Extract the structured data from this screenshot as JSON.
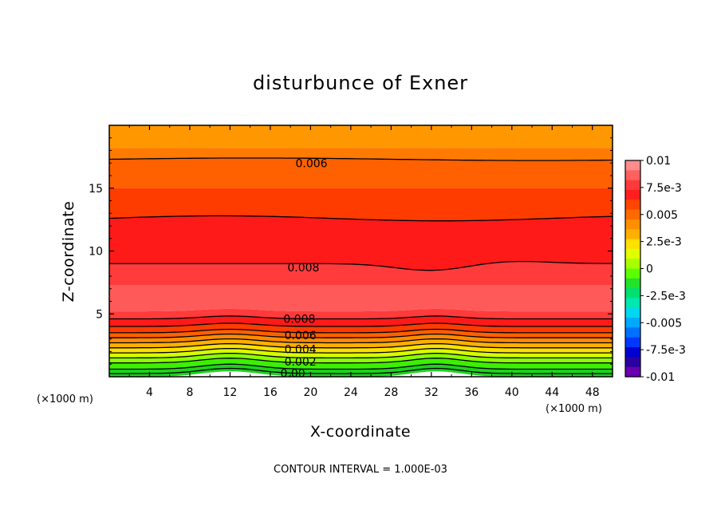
{
  "chart_data": {
    "type": "heatmap",
    "title": "disturbunce of Exner",
    "xlabel": "X-coordinate",
    "ylabel": "Z-coordinate",
    "x_unit": "(×1000 m)",
    "y_unit": "(×1000 m)",
    "xlim": [
      0,
      50
    ],
    "ylim": [
      0,
      20
    ],
    "x_ticks": [
      4,
      8,
      12,
      16,
      20,
      24,
      28,
      32,
      36,
      40,
      44,
      48
    ],
    "y_ticks": [
      5,
      10,
      15
    ],
    "footer": "CONTOUR INTERVAL = 1.000E-03",
    "contour_interval": 0.001,
    "colorbar": {
      "labels": [
        "0.01",
        "7.5e-3",
        "0.005",
        "2.5e-3",
        "0",
        "-2.5e-3",
        "-0.005",
        "-7.5e-3",
        "-0.01"
      ],
      "values": [
        0.01,
        0.0075,
        0.005,
        0.0025,
        0,
        -0.0025,
        -0.005,
        -0.0075,
        -0.01
      ],
      "colors": [
        "#ff8c8c",
        "#ff6060",
        "#ff3a3a",
        "#ff1e1e",
        "#ff4600",
        "#ff6a00",
        "#ff8f00",
        "#ffb000",
        "#ffe000",
        "#e0ff00",
        "#a8ff00",
        "#5cff00",
        "#22e22a",
        "#00e070",
        "#00e8b0",
        "#00d8f0",
        "#00a8ff",
        "#0070ff",
        "#0038ff",
        "#0000d0",
        "#2a00a0",
        "#6a00b0"
      ]
    },
    "contour_labels": [
      {
        "text": "0.006",
        "x": 18.5,
        "z": 17.0
      },
      {
        "text": "0.008",
        "x": 17.7,
        "z": 8.7
      },
      {
        "text": "0.008",
        "x": 17.3,
        "z": 4.6
      },
      {
        "text": "0.006",
        "x": 17.4,
        "z": 3.3
      },
      {
        "text": "0.004",
        "x": 17.4,
        "z": 2.2
      },
      {
        "text": "0.002",
        "x": 17.4,
        "z": 1.2
      },
      {
        "text": "0.00",
        "x": 17.0,
        "z": 0.3
      }
    ],
    "bands": [
      {
        "top": 20.0,
        "bottom": 18.2,
        "color": "#ff9800",
        "level": "0.005"
      },
      {
        "top": 18.2,
        "bottom": 17.3,
        "color": "#ff7a00",
        "level": "0.0055"
      },
      {
        "top": 17.3,
        "bottom": 15.0,
        "color": "#ff6000",
        "level": "0.006"
      },
      {
        "top": 15.0,
        "bottom": 12.6,
        "color": "#ff3c00",
        "level": "0.007"
      },
      {
        "top": 12.6,
        "bottom": 9.0,
        "color": "#ff1a1a",
        "level": "0.0075"
      },
      {
        "top": 9.0,
        "bottom": 7.3,
        "color": "#ff3b3b",
        "level": "0.008"
      },
      {
        "top": 7.3,
        "bottom": 5.2,
        "color": "#ff5a5a",
        "level": "0.009"
      },
      {
        "top": 5.2,
        "bottom": 4.6,
        "color": "#ff3b3b",
        "level": "0.008"
      },
      {
        "top": 4.6,
        "bottom": 4.0,
        "color": "#ff1a1a",
        "level": "0.0075"
      },
      {
        "top": 4.0,
        "bottom": 3.5,
        "color": "#ff3c00",
        "level": "0.007"
      },
      {
        "top": 3.5,
        "bottom": 3.1,
        "color": "#ff6000",
        "level": "0.006"
      },
      {
        "top": 3.1,
        "bottom": 2.7,
        "color": "#ff8a00",
        "level": "0.005"
      },
      {
        "top": 2.7,
        "bottom": 2.3,
        "color": "#ffb000",
        "level": "0.0045"
      },
      {
        "top": 2.3,
        "bottom": 1.9,
        "color": "#ffe000",
        "level": "0.004"
      },
      {
        "top": 1.9,
        "bottom": 1.5,
        "color": "#d6ff00",
        "level": "0.003"
      },
      {
        "top": 1.5,
        "bottom": 1.1,
        "color": "#8cff00",
        "level": "0.002"
      },
      {
        "top": 1.1,
        "bottom": 0.6,
        "color": "#3cf000",
        "level": "0.001"
      },
      {
        "top": 0.6,
        "bottom": 0.0,
        "color": "#1ed21e",
        "level": "0.0"
      }
    ]
  }
}
